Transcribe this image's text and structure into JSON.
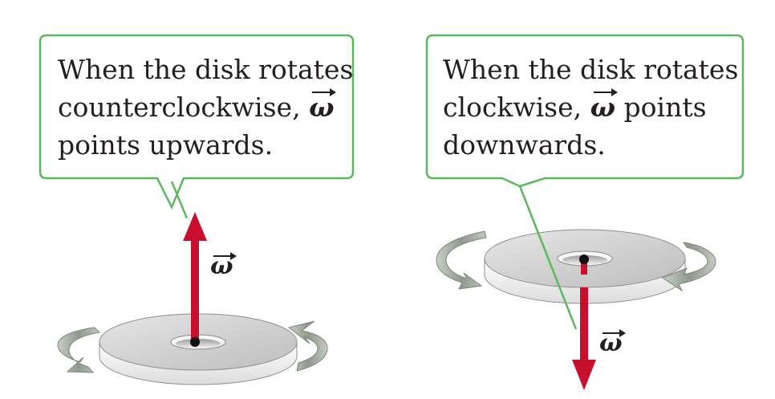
{
  "colors": {
    "callout_border": "#5cb85c",
    "vector_arrow": "#c8102e",
    "disk_face": "#d4d4d4",
    "disk_edge": "#efefef",
    "rotation_arrow": "#9aa39a",
    "text": "#231f20"
  },
  "left_panel": {
    "callout": {
      "line1": "When the disk rotates",
      "line2_prefix": "counterclockwise, ",
      "line2_symbol": "ω",
      "line3": "points upwards."
    },
    "vector_label": "ω",
    "rotation": "counterclockwise",
    "vector_direction": "up"
  },
  "right_panel": {
    "callout": {
      "line1": "When the disk rotates",
      "line2_prefix": "clockwise, ",
      "line2_symbol": "ω",
      "line2_suffix": " points",
      "line3": "downwards."
    },
    "vector_label": "ω",
    "rotation": "clockwise",
    "vector_direction": "down"
  }
}
